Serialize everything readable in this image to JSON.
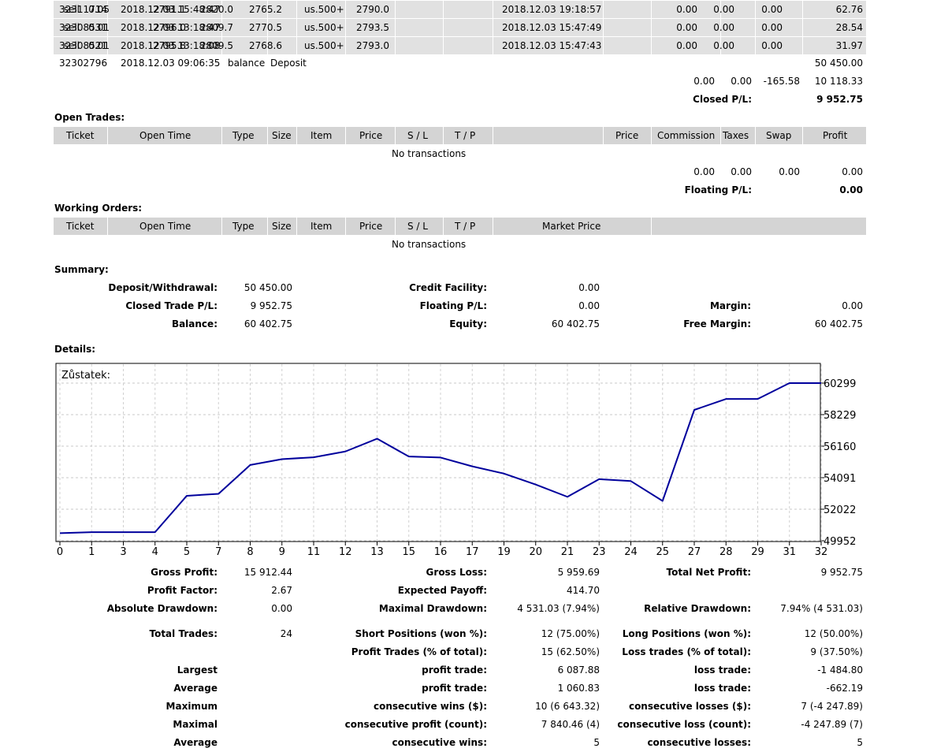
{
  "history_rows": [
    {
      "ticket": "32311714",
      "open_time": "2018.12.03 15:48:47",
      "type": "sell",
      "size": "0.05",
      "item": "us.500+",
      "price": "2791.1",
      "sl": "2820.0",
      "tp": "2765.2",
      "close_time": "2018.12.03 19:18:57",
      "close_price": "2790.0",
      "commission": "0.00",
      "taxes": "0.00",
      "swap": "0.00",
      "profit": "62.76"
    },
    {
      "ticket": "32308531",
      "open_time": "2018.12.03 13:18:47",
      "type": "sell",
      "size": "0.01",
      "item": "us.500+",
      "price": "2796.0",
      "sl": "2809.7",
      "tp": "2770.5",
      "close_time": "2018.12.03 15:47:49",
      "close_price": "2793.5",
      "commission": "0.00",
      "taxes": "0.00",
      "swap": "0.00",
      "profit": "28.54"
    },
    {
      "ticket": "32308521",
      "open_time": "2018.12.03 13:18:08",
      "type": "sell",
      "size": "0.01",
      "item": "us.500+",
      "price": "2795.8",
      "sl": "2809.5",
      "tp": "2768.6",
      "close_time": "2018.12.03 15:47:43",
      "close_price": "2793.0",
      "commission": "0.00",
      "taxes": "0.00",
      "swap": "0.00",
      "profit": "31.97"
    }
  ],
  "deposit_row": {
    "ticket": "32302796",
    "open_time": "2018.12.03 09:06:35",
    "type": "balance",
    "item": "Deposit",
    "profit": "50 450.00"
  },
  "closed_totals": {
    "commission": "0.00",
    "taxes": "0.00",
    "swap": "-165.58",
    "profit": "10 118.33",
    "pl_label": "Closed P/L:",
    "pl_value": "9 952.75"
  },
  "open_trades": {
    "title": "Open Trades:",
    "headers": {
      "ticket": "Ticket",
      "open_time": "Open Time",
      "type": "Type",
      "size": "Size",
      "item": "Item",
      "price": "Price",
      "sl": "S / L",
      "tp": "T / P",
      "price2": "Price",
      "commission": "Commission",
      "taxes": "Taxes",
      "swap": "Swap",
      "profit": "Profit"
    },
    "empty": "No transactions",
    "totals": {
      "commission": "0.00",
      "taxes": "0.00",
      "swap": "0.00",
      "profit": "0.00",
      "pl_label": "Floating P/L:",
      "pl_value": "0.00"
    }
  },
  "working_orders": {
    "title": "Working Orders:",
    "headers": {
      "ticket": "Ticket",
      "open_time": "Open Time",
      "type": "Type",
      "size": "Size",
      "item": "Item",
      "price": "Price",
      "sl": "S / L",
      "tp": "T / P",
      "market_price": "Market Price"
    },
    "empty": "No transactions"
  },
  "summary": {
    "title": "Summary:",
    "deposit_label": "Deposit/Withdrawal:",
    "deposit_value": "50 450.00",
    "credit_label": "Credit Facility:",
    "credit_value": "0.00",
    "closed_label": "Closed Trade P/L:",
    "closed_value": "9 952.75",
    "floating_label": "Floating P/L:",
    "floating_value": "0.00",
    "margin_label": "Margin:",
    "margin_value": "0.00",
    "balance_label": "Balance:",
    "balance_value": "60 402.75",
    "equity_label": "Equity:",
    "equity_value": "60 402.75",
    "free_margin_label": "Free Margin:",
    "free_margin_value": "60 402.75"
  },
  "details_title": "Details:",
  "chart_data": {
    "type": "line",
    "title": "Zůstatek:",
    "x": [
      0,
      1,
      2,
      3,
      4,
      5,
      6,
      7,
      8,
      9,
      10,
      11,
      12,
      13,
      14,
      15,
      16,
      17,
      18,
      19,
      20,
      21,
      22,
      23,
      24
    ],
    "x_tick_labels": [
      "0",
      "1",
      "3",
      "4",
      "5",
      "7",
      "8",
      "9",
      "11",
      "12",
      "13",
      "15",
      "16",
      "17",
      "19",
      "20",
      "21",
      "23",
      "24",
      "25",
      "27",
      "28",
      "29",
      "31",
      "32"
    ],
    "series": [
      {
        "values": [
          50450,
          50514,
          50514,
          50514,
          52903,
          53029,
          54925,
          55305,
          55431,
          55811,
          56650,
          55480,
          55415,
          54835,
          54361,
          53642,
          52836,
          53995,
          53869,
          52565,
          58540,
          59256,
          59256,
          60299,
          60299
        ]
      }
    ],
    "y_tick_labels": [
      "60299",
      "58229",
      "56160",
      "54091",
      "52022",
      "49952"
    ],
    "ylim": [
      49952,
      60299
    ],
    "grid": true,
    "line_color": "#00009c"
  },
  "stats": {
    "gross_profit_label": "Gross Profit:",
    "gross_profit": "15 912.44",
    "gross_loss_label": "Gross Loss:",
    "gross_loss": "5 959.69",
    "total_net_label": "Total Net Profit:",
    "total_net": "9 952.75",
    "profit_factor_label": "Profit Factor:",
    "profit_factor": "2.67",
    "expected_payoff_label": "Expected Payoff:",
    "expected_payoff": "414.70",
    "abs_dd_label": "Absolute Drawdown:",
    "abs_dd": "0.00",
    "max_dd_label": "Maximal Drawdown:",
    "max_dd": "4 531.03 (7.94%)",
    "rel_dd_label": "Relative Drawdown:",
    "rel_dd": "7.94% (4 531.03)",
    "total_trades_label": "Total Trades:",
    "total_trades": "24",
    "short_label": "Short Positions (won %):",
    "short": "12 (75.00%)",
    "long_label": "Long Positions (won %):",
    "long": "12 (50.00%)",
    "profit_trades_label": "Profit Trades (% of total):",
    "profit_trades": "15 (62.50%)",
    "loss_trades_label": "Loss trades (% of total):",
    "loss_trades": "9 (37.50%)",
    "largest_label": "Largest",
    "largest_profit_label": "profit trade:",
    "largest_profit": "6 087.88",
    "largest_loss_label": "loss trade:",
    "largest_loss": "-1 484.80",
    "average_label": "Average",
    "average_profit_label": "profit trade:",
    "average_profit": "1 060.83",
    "average_loss_label": "loss trade:",
    "average_loss": "-662.19",
    "maximum_label": "Maximum",
    "max_cons_wins_label": "consecutive wins ($):",
    "max_cons_wins": "10 (6 643.32)",
    "max_cons_losses_label": "consecutive losses ($):",
    "max_cons_losses": "7 (-4 247.89)",
    "maximal_label": "Maximal",
    "maximal_cons_profit_label": "consecutive profit (count):",
    "maximal_cons_profit": "7 840.46 (4)",
    "maximal_cons_loss_label": "consecutive loss (count):",
    "maximal_cons_loss": "-4 247.89 (7)",
    "average2_label": "Average",
    "avg_cons_wins_label": "consecutive wins:",
    "avg_cons_wins": "5",
    "avg_cons_losses_label": "consecutive losses:",
    "avg_cons_losses": "5"
  }
}
